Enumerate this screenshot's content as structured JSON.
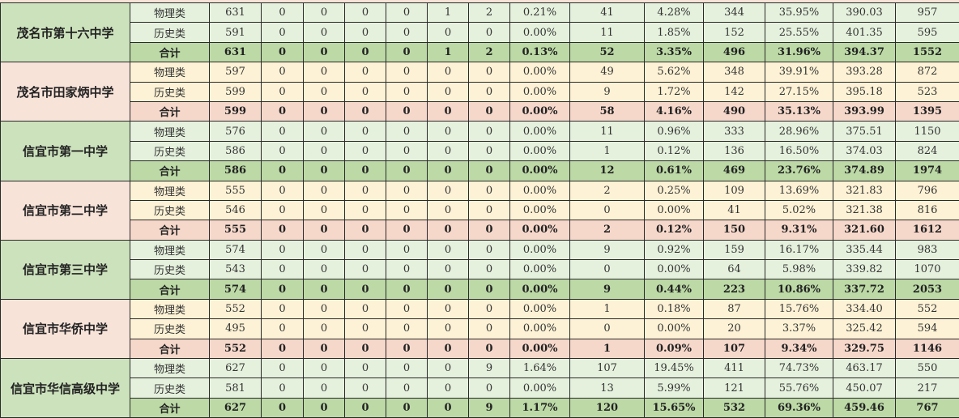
{
  "schools": [
    {
      "name": "茂名市第十六中学",
      "theme": "green",
      "rows": [
        [
          "物理类",
          "631",
          "0",
          "0",
          "0",
          "0",
          "1",
          "2",
          "0.21%",
          "41",
          "4.28%",
          "344",
          "35.95%",
          "390.03",
          "957"
        ],
        [
          "历史类",
          "591",
          "0",
          "0",
          "0",
          "0",
          "0",
          "0",
          "0.00%",
          "11",
          "1.85%",
          "152",
          "25.55%",
          "401.35",
          "595"
        ],
        [
          "合计",
          "631",
          "0",
          "0",
          "0",
          "0",
          "1",
          "2",
          "0.13%",
          "52",
          "3.35%",
          "496",
          "31.96%",
          "394.37",
          "1552"
        ]
      ]
    },
    {
      "name": "茂名市田家炳中学",
      "theme": "pink",
      "rows": [
        [
          "物理类",
          "597",
          "0",
          "0",
          "0",
          "0",
          "0",
          "0",
          "0.00%",
          "49",
          "5.62%",
          "348",
          "39.91%",
          "393.28",
          "872"
        ],
        [
          "历史类",
          "599",
          "0",
          "0",
          "0",
          "0",
          "0",
          "0",
          "0.00%",
          "9",
          "1.72%",
          "142",
          "27.15%",
          "395.18",
          "523"
        ],
        [
          "合计",
          "599",
          "0",
          "0",
          "0",
          "0",
          "0",
          "0",
          "0.00%",
          "58",
          "4.16%",
          "490",
          "35.13%",
          "393.99",
          "1395"
        ]
      ]
    },
    {
      "name": "信宜市第一中学",
      "theme": "green",
      "rows": [
        [
          "物理类",
          "576",
          "0",
          "0",
          "0",
          "0",
          "0",
          "0",
          "0.00%",
          "11",
          "0.96%",
          "333",
          "28.96%",
          "375.51",
          "1150"
        ],
        [
          "历史类",
          "586",
          "0",
          "0",
          "0",
          "0",
          "0",
          "0",
          "0.00%",
          "1",
          "0.12%",
          "136",
          "16.50%",
          "374.03",
          "824"
        ],
        [
          "合计",
          "586",
          "0",
          "0",
          "0",
          "0",
          "0",
          "0",
          "0.00%",
          "12",
          "0.61%",
          "469",
          "23.76%",
          "374.89",
          "1974"
        ]
      ]
    },
    {
      "name": "信宜市第二中学",
      "theme": "pink",
      "rows": [
        [
          "物理类",
          "555",
          "0",
          "0",
          "0",
          "0",
          "0",
          "0",
          "0.00%",
          "2",
          "0.25%",
          "109",
          "13.69%",
          "321.83",
          "796"
        ],
        [
          "历史类",
          "546",
          "0",
          "0",
          "0",
          "0",
          "0",
          "0",
          "0.00%",
          "0",
          "0.00%",
          "41",
          "5.02%",
          "321.38",
          "816"
        ],
        [
          "合计",
          "555",
          "0",
          "0",
          "0",
          "0",
          "0",
          "0",
          "0.00%",
          "2",
          "0.12%",
          "150",
          "9.31%",
          "321.60",
          "1612"
        ]
      ]
    },
    {
      "name": "信宜市第三中学",
      "theme": "green",
      "rows": [
        [
          "物理类",
          "574",
          "0",
          "0",
          "0",
          "0",
          "0",
          "0",
          "0.00%",
          "9",
          "0.92%",
          "159",
          "16.17%",
          "335.44",
          "983"
        ],
        [
          "历史类",
          "543",
          "0",
          "0",
          "0",
          "0",
          "0",
          "0",
          "0.00%",
          "0",
          "0.00%",
          "64",
          "5.98%",
          "339.82",
          "1070"
        ],
        [
          "合计",
          "574",
          "0",
          "0",
          "0",
          "0",
          "0",
          "0",
          "0.00%",
          "9",
          "0.44%",
          "223",
          "10.86%",
          "337.72",
          "2053"
        ]
      ]
    },
    {
      "name": "信宜市华侨中学",
      "theme": "pink",
      "rows": [
        [
          "物理类",
          "552",
          "0",
          "0",
          "0",
          "0",
          "0",
          "0",
          "0.00%",
          "1",
          "0.18%",
          "87",
          "15.76%",
          "334.40",
          "552"
        ],
        [
          "历史类",
          "495",
          "0",
          "0",
          "0",
          "0",
          "0",
          "0",
          "0.00%",
          "0",
          "0.00%",
          "20",
          "3.37%",
          "325.42",
          "594"
        ],
        [
          "合计",
          "552",
          "0",
          "0",
          "0",
          "0",
          "0",
          "0",
          "0.00%",
          "1",
          "0.09%",
          "107",
          "9.34%",
          "329.75",
          "1146"
        ]
      ]
    },
    {
      "name": "信宜市华信高级中学",
      "theme": "green",
      "rows": [
        [
          "物理类",
          "627",
          "0",
          "0",
          "0",
          "0",
          "0",
          "9",
          "1.64%",
          "107",
          "19.45%",
          "411",
          "74.73%",
          "463.17",
          "550"
        ],
        [
          "历史类",
          "581",
          "0",
          "0",
          "0",
          "0",
          "0",
          "0",
          "0.00%",
          "13",
          "5.99%",
          "121",
          "55.76%",
          "450.07",
          "217"
        ],
        [
          "合计",
          "627",
          "0",
          "0",
          "0",
          "0",
          "0",
          "9",
          "1.17%",
          "120",
          "15.65%",
          "532",
          "69.36%",
          "459.46",
          "767"
        ]
      ]
    }
  ]
}
